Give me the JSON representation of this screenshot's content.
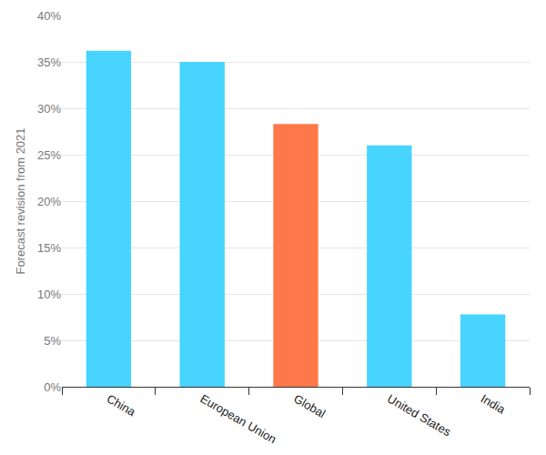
{
  "chart_data": {
    "type": "bar",
    "y_label": "Forecast revision from 2021",
    "categories": [
      "China",
      "European Union",
      "Global",
      "United States",
      "India"
    ],
    "values": [
      36.2,
      35.0,
      28.3,
      26.0,
      7.8
    ],
    "colors": [
      "#47d4ff",
      "#47d4ff",
      "#ff784a",
      "#47d4ff",
      "#47d4ff"
    ],
    "ylim": [
      0,
      40
    ],
    "yticks": [
      {
        "value": 0,
        "label": "0%"
      },
      {
        "value": 5,
        "label": "5%"
      },
      {
        "value": 10,
        "label": "10%"
      },
      {
        "value": 15,
        "label": "15%"
      },
      {
        "value": 20,
        "label": "20%"
      },
      {
        "value": 25,
        "label": "25%"
      },
      {
        "value": 30,
        "label": "30%"
      },
      {
        "value": 35,
        "label": "35%"
      },
      {
        "value": 40,
        "label": "40%"
      }
    ],
    "grid": true
  }
}
